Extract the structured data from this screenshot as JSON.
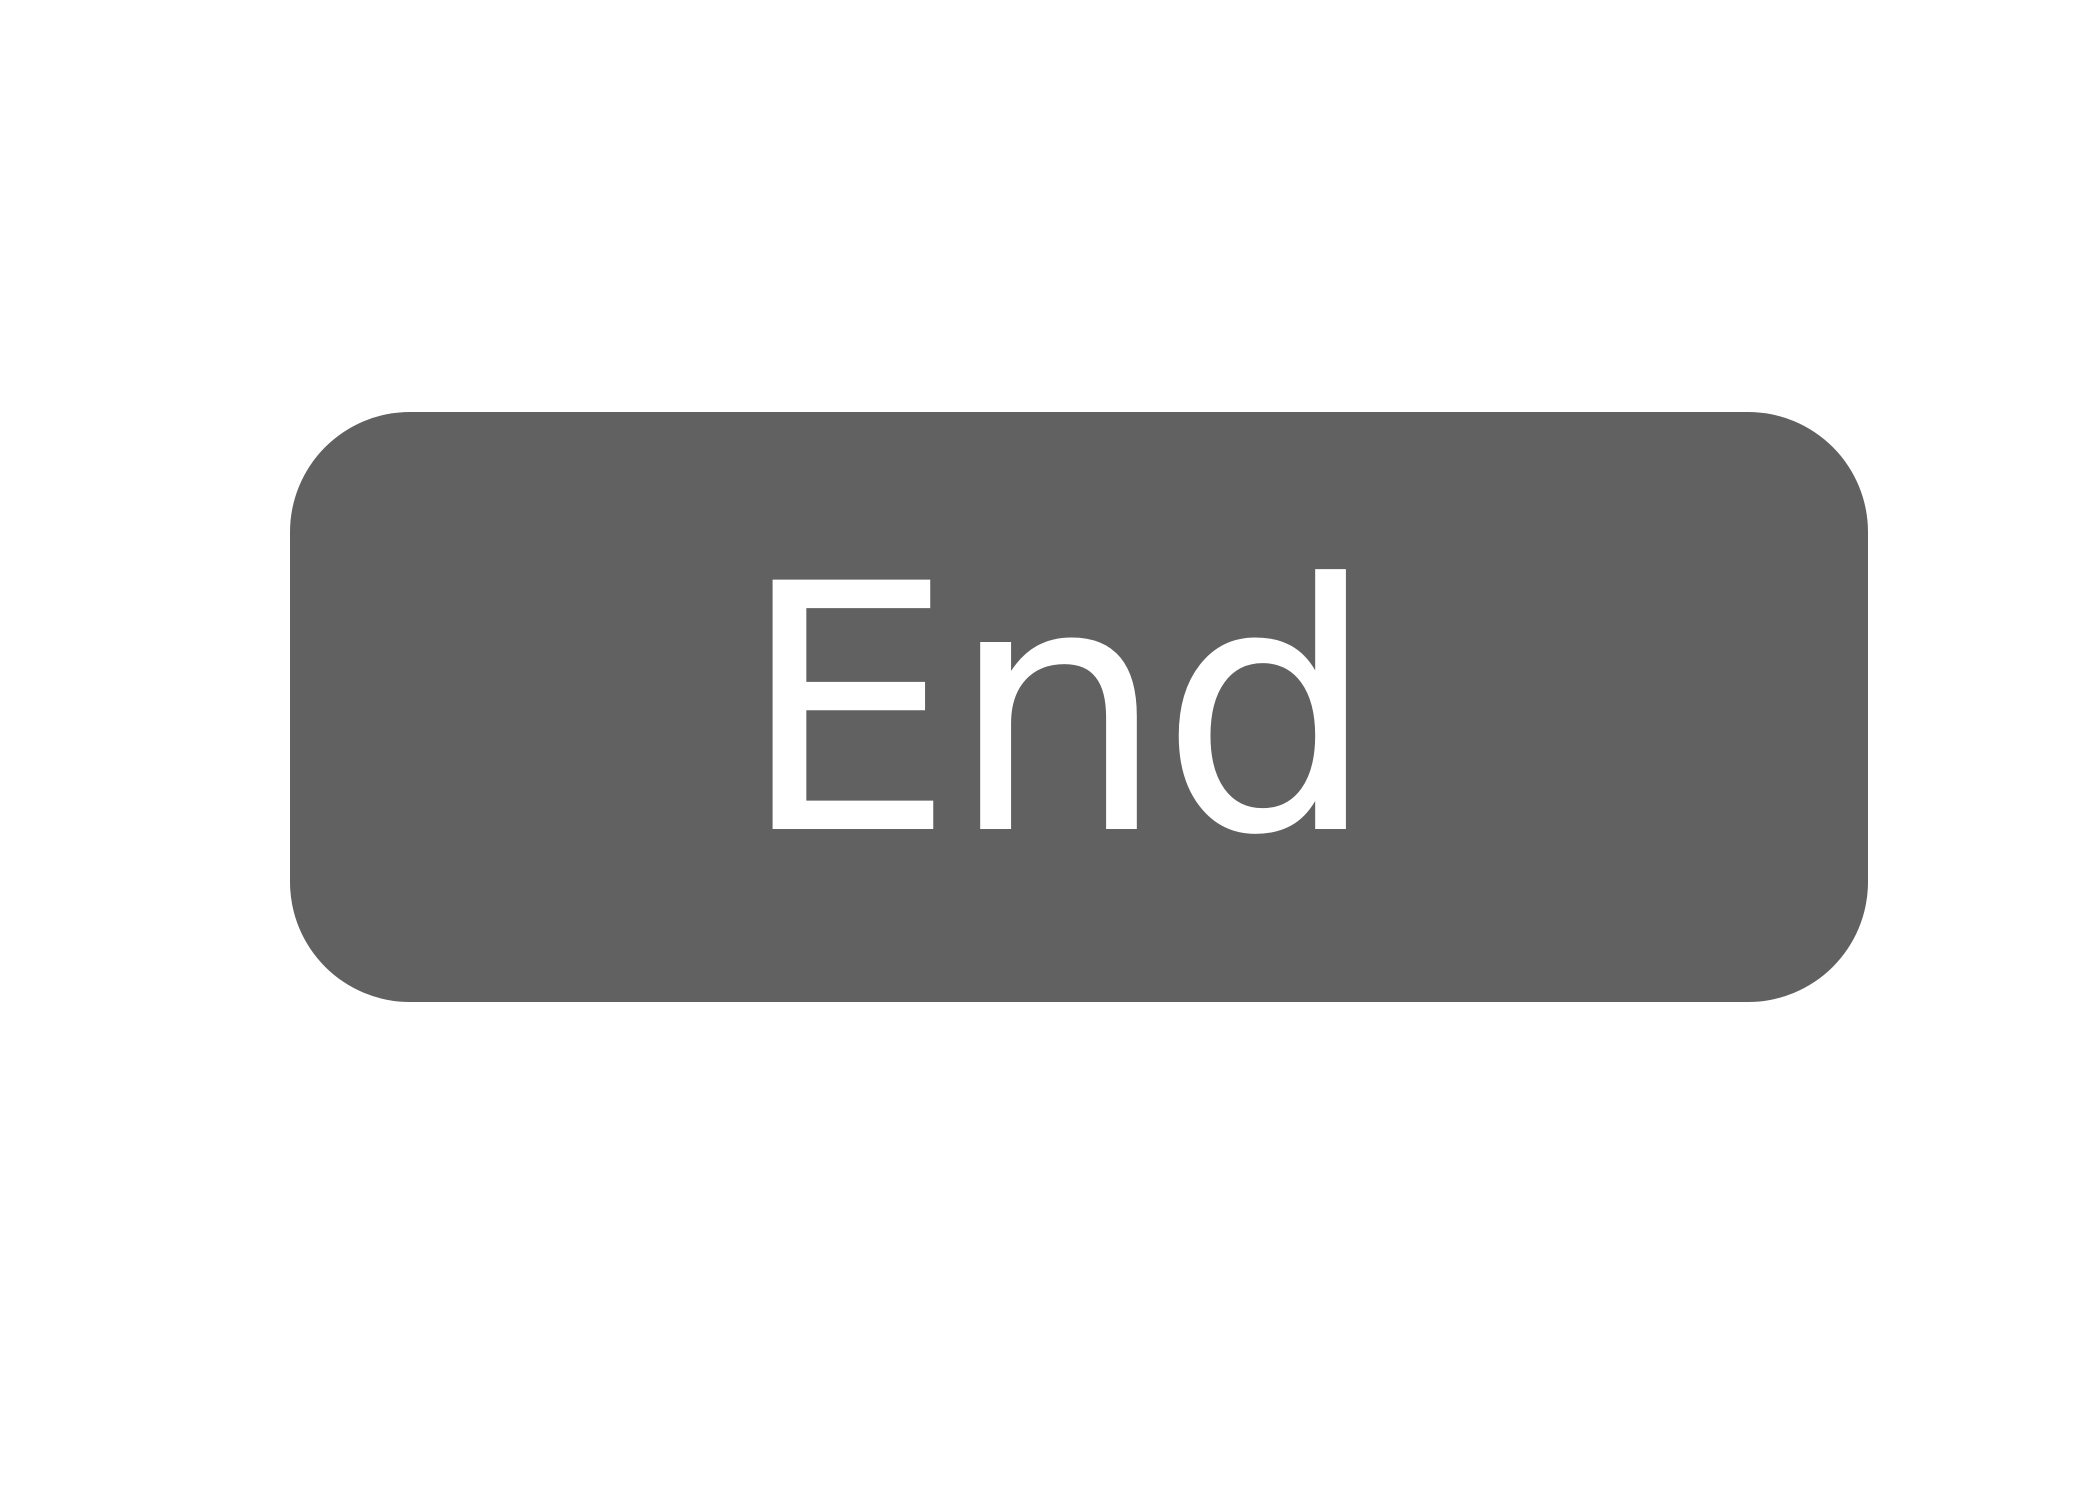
{
  "button": {
    "label": "End",
    "background_color": "#616161",
    "text_color": "#ffffff"
  },
  "page": {
    "background_color": "#ffffff"
  }
}
